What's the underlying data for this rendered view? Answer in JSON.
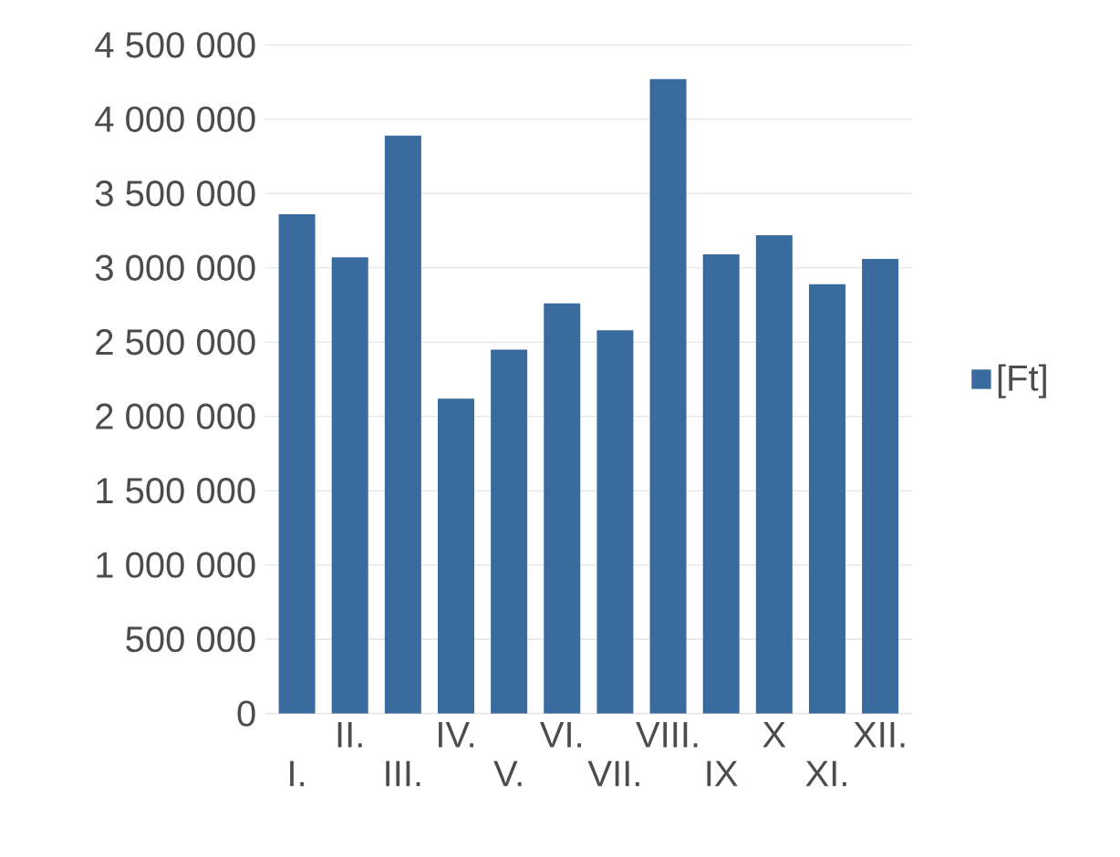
{
  "chart_data": {
    "type": "bar",
    "categories": [
      "I.",
      "II.",
      "III.",
      "IV.",
      "V.",
      "VI.",
      "VII.",
      "VIII.",
      "IX",
      "X",
      "XI.",
      "XII."
    ],
    "series": [
      {
        "name": "[Ft]",
        "color": "#3a6b9f",
        "values": [
          3360000,
          3070000,
          3890000,
          2120000,
          2450000,
          2760000,
          2580000,
          4270000,
          3090000,
          3220000,
          2890000,
          3060000
        ]
      }
    ],
    "ylim": [
      0,
      4500000
    ],
    "yticks": [
      {
        "value": 0,
        "label": "0"
      },
      {
        "value": 500000,
        "label": "500 000"
      },
      {
        "value": 1000000,
        "label": "1 000 000"
      },
      {
        "value": 1500000,
        "label": "1 500 000"
      },
      {
        "value": 2000000,
        "label": "2 000 000"
      },
      {
        "value": 2500000,
        "label": "2 500 000"
      },
      {
        "value": 3000000,
        "label": "3 000 000"
      },
      {
        "value": 3500000,
        "label": "3 500 000"
      },
      {
        "value": 4000000,
        "label": "4 000 000"
      },
      {
        "value": 4500000,
        "label": "4 500 000"
      }
    ],
    "grid": "y",
    "legend": "right"
  }
}
